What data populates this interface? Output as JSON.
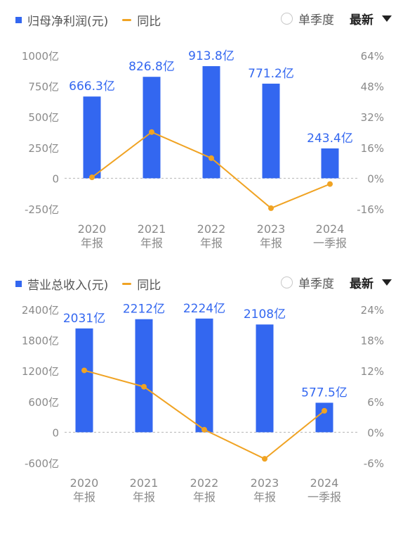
{
  "charts": [
    {
      "id": "profit",
      "legend": {
        "bar_label": "归母净利润(元)",
        "line_label": "同比"
      },
      "controls": {
        "quarter_label": "单季度",
        "sort_label": "最新"
      },
      "colors": {
        "bar": "#3367f0",
        "line": "#f0a323",
        "value_label": "#3367f0",
        "axis_text": "#8a8a8a"
      },
      "chart_data": {
        "type": "bar",
        "categories": [
          [
            "2020",
            "年报"
          ],
          [
            "2021",
            "年报"
          ],
          [
            "2022",
            "年报"
          ],
          [
            "2023",
            "年报"
          ],
          [
            "2024",
            "一季报"
          ]
        ],
        "series": [
          {
            "name": "归母净利润(元)",
            "type": "bar",
            "axis": "left",
            "values": [
              666.3,
              826.8,
              913.8,
              771.2,
              243.4
            ],
            "labels": [
              "666.3亿",
              "826.8亿",
              "913.8亿",
              "771.2亿",
              "243.4亿"
            ]
          },
          {
            "name": "同比",
            "type": "line",
            "axis": "right",
            "values": [
              0.5,
              24.1,
              10.5,
              -15.6,
              -3.0
            ]
          }
        ],
        "left_axis": {
          "ylim": [
            -250,
            1000
          ],
          "ticks": [
            1000,
            750,
            500,
            250,
            0,
            -250
          ],
          "tick_labels": [
            "1000亿",
            "750亿",
            "500亿",
            "250亿",
            "0",
            "-250亿"
          ]
        },
        "right_axis": {
          "ylim": [
            -16,
            64
          ],
          "ticks": [
            64,
            48,
            32,
            16,
            0,
            -16
          ],
          "tick_labels": [
            "64%",
            "48%",
            "32%",
            "16%",
            "0%",
            "-16%"
          ]
        },
        "grid": "dashed zero line",
        "legend_position": "top-left"
      }
    },
    {
      "id": "revenue",
      "legend": {
        "bar_label": "营业总收入(元)",
        "line_label": "同比"
      },
      "controls": {
        "quarter_label": "单季度",
        "sort_label": "最新"
      },
      "colors": {
        "bar": "#3367f0",
        "line": "#f0a323",
        "value_label": "#3367f0",
        "axis_text": "#8a8a8a"
      },
      "chart_data": {
        "type": "bar",
        "categories": [
          [
            "2020",
            "年报"
          ],
          [
            "2021",
            "年报"
          ],
          [
            "2022",
            "年报"
          ],
          [
            "2023",
            "年报"
          ],
          [
            "2024",
            "一季报"
          ]
        ],
        "series": [
          {
            "name": "营业总收入(元)",
            "type": "bar",
            "axis": "left",
            "values": [
              2031,
              2212,
              2224,
              2108,
              577.5
            ],
            "labels": [
              "2031亿",
              "2212亿",
              "2224亿",
              "2108亿",
              "577.5亿"
            ]
          },
          {
            "name": "同比",
            "type": "line",
            "axis": "right",
            "values": [
              12.1,
              8.9,
              0.5,
              -5.2,
              4.2
            ]
          }
        ],
        "left_axis": {
          "ylim": [
            -600,
            2400
          ],
          "ticks": [
            2400,
            1800,
            1200,
            600,
            0,
            -600
          ],
          "tick_labels": [
            "2400亿",
            "1800亿",
            "1200亿",
            "600亿",
            "0",
            "-600亿"
          ]
        },
        "right_axis": {
          "ylim": [
            -6,
            24
          ],
          "ticks": [
            24,
            18,
            12,
            6,
            0,
            -6
          ],
          "tick_labels": [
            "24%",
            "18%",
            "12%",
            "6%",
            "0%",
            "-6%"
          ]
        },
        "grid": "dashed zero line",
        "legend_position": "top-left"
      }
    }
  ]
}
